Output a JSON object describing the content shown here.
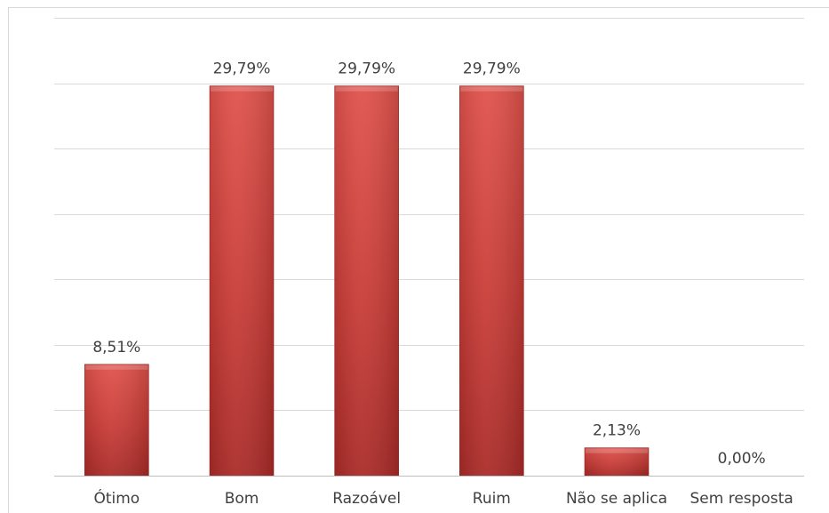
{
  "chart_data": {
    "type": "bar",
    "title": "",
    "xlabel": "",
    "ylabel": "",
    "categories": [
      "Ótimo",
      "Bom",
      "Razoável",
      "Ruim",
      "Não se aplica",
      "Sem resposta"
    ],
    "values": [
      8.51,
      29.79,
      29.79,
      29.79,
      2.13,
      0.0
    ],
    "value_labels": [
      "8,51%",
      "29,79%",
      "29,79%",
      "29,79%",
      "2,13%",
      "0,00%"
    ],
    "ylim": [
      0,
      35
    ],
    "ytick_step": 5,
    "grid": true,
    "legend": "none",
    "colors": {
      "bar_top": "#e0514b",
      "bar_mid": "#c83b36",
      "bar_bottom": "#a92a27"
    }
  }
}
